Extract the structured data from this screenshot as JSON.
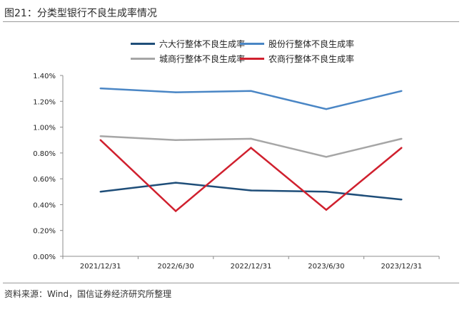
{
  "figure": {
    "title": "图21：分类型银行不良生成率情况",
    "source": "资料来源：Wind，国信证券经济研究所整理"
  },
  "chart_data": {
    "type": "line",
    "categories": [
      "2021/12/31",
      "2022/6/30",
      "2022/12/31",
      "2023/6/30",
      "2023/12/31"
    ],
    "yticks": [
      "0.00%",
      "0.20%",
      "0.40%",
      "0.60%",
      "0.80%",
      "1.00%",
      "1.20%",
      "1.40%"
    ],
    "ylim": [
      0,
      1.4
    ],
    "grid": false,
    "legend_position": "top",
    "series": [
      {
        "name": "六大行整体不良生成率",
        "color": "#1f4e79",
        "values": [
          0.5,
          0.57,
          0.51,
          0.5,
          0.44
        ]
      },
      {
        "name": "股份行整体不良生成率",
        "color": "#4a86c5",
        "values": [
          1.3,
          1.27,
          1.28,
          1.14,
          1.28
        ]
      },
      {
        "name": "城商行整体不良生成率",
        "color": "#a6a6a6",
        "values": [
          0.93,
          0.9,
          0.91,
          0.77,
          0.91
        ]
      },
      {
        "name": "农商行整体不良生成率",
        "color": "#d0202e",
        "values": [
          0.9,
          0.35,
          0.84,
          0.36,
          0.84
        ]
      }
    ]
  }
}
